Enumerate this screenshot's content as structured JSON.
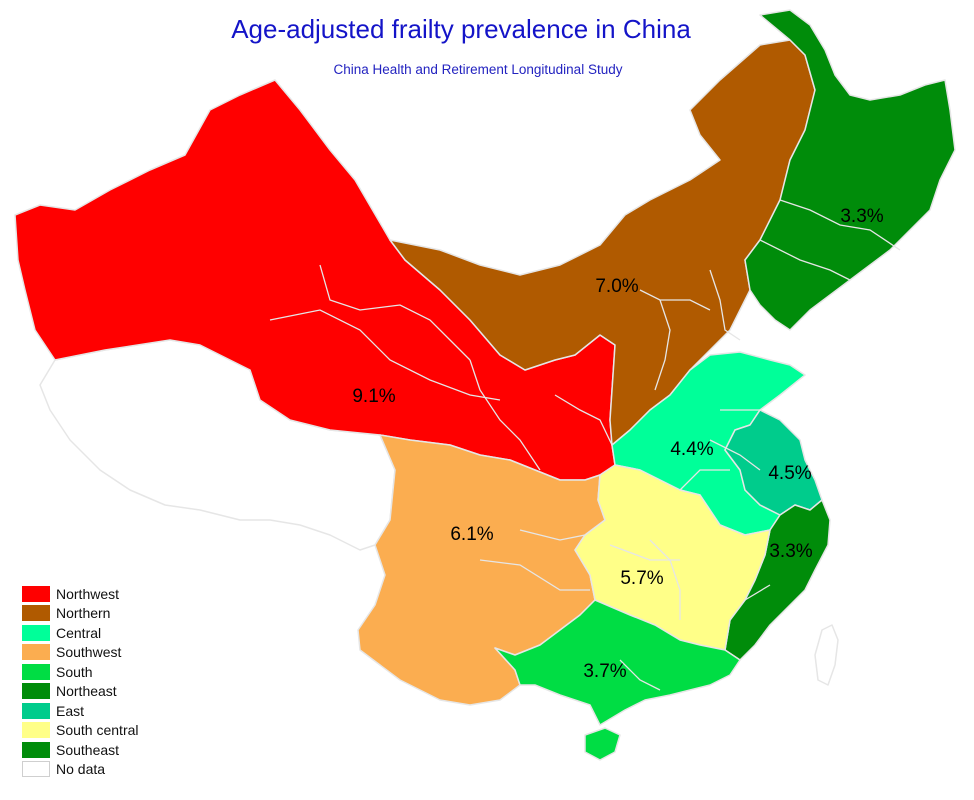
{
  "title": "Age-adjusted frailty prevalence in China",
  "subtitle": "China Health and Retirement Longitudinal Study",
  "colors": {
    "northwest": "#ff0000",
    "northern": "#b05a00",
    "central": "#00ff99",
    "southwest": "#fbad50",
    "south": "#00dd44",
    "northeast": "#008c0a",
    "east": "#00cc8c",
    "south_central": "#ffff88",
    "southeast": "#008c0a",
    "no_data": "#ffffff",
    "border": "#e6e6e6",
    "title": "#1414c8"
  },
  "regions": [
    {
      "key": "northwest",
      "name": "Northwest",
      "value": "9.1%"
    },
    {
      "key": "northern",
      "name": "Northern",
      "value": "7.0%"
    },
    {
      "key": "northeast",
      "name": "Northeast",
      "value": "3.3%"
    },
    {
      "key": "central",
      "name": "Central",
      "value": "4.4%"
    },
    {
      "key": "east",
      "name": "East",
      "value": "4.5%"
    },
    {
      "key": "southwest",
      "name": "Southwest",
      "value": "6.1%"
    },
    {
      "key": "south_central",
      "name": "South central",
      "value": "5.7%"
    },
    {
      "key": "southeast",
      "name": "Southeast",
      "value": "3.3%"
    },
    {
      "key": "south",
      "name": "South",
      "value": "3.7%"
    }
  ],
  "legend": [
    {
      "label": "Northwest",
      "color": "#ff0000"
    },
    {
      "label": "Northern",
      "color": "#b05a00"
    },
    {
      "label": "Central",
      "color": "#00ff99"
    },
    {
      "label": "Southwest",
      "color": "#fbad50"
    },
    {
      "label": "South",
      "color": "#00dd44"
    },
    {
      "label": "Northeast",
      "color": "#008c0a"
    },
    {
      "label": "East",
      "color": "#00cc8c"
    },
    {
      "label": "South central",
      "color": "#ffff88"
    },
    {
      "label": "Southeast",
      "color": "#008c0a"
    },
    {
      "label": "No data",
      "color": "#ffffff"
    }
  ]
}
